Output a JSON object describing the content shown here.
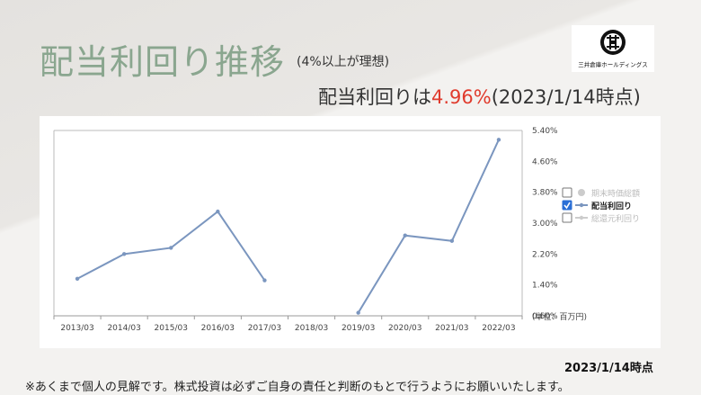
{
  "header": {
    "title": "配当利回り推移",
    "note": "(4%以上が理想)",
    "yield_prefix": "配当利回りは",
    "yield_value": "4.96%",
    "yield_suffix": "(2023/1/14時点)"
  },
  "logo": {
    "name": "三井倉庫ホールディングス",
    "icon": "company-logo-icon"
  },
  "footer": {
    "as_of": "2023/1/14時点",
    "disclaimer": "※あくまで個人の見解です。株式投資は必ずご自身の責任と判断のもとで行うようにお願いいたします。"
  },
  "chart_data": {
    "type": "line",
    "categories": [
      "2013/03",
      "2014/03",
      "2015/03",
      "2016/03",
      "2017/03",
      "2018/03",
      "2019/03",
      "2020/03",
      "2021/03",
      "2022/03"
    ],
    "series": [
      {
        "name": "配当利回り",
        "values": [
          1.56,
          2.2,
          2.36,
          3.3,
          1.52,
          null,
          0.68,
          2.68,
          2.54,
          5.16
        ],
        "color": "#7b96bf"
      }
    ],
    "y_ticks": [
      "5.40%",
      "4.60%",
      "3.80%",
      "3.00%",
      "2.20%",
      "1.40%",
      "0.60%"
    ],
    "ylim": [
      0.6,
      5.4
    ],
    "unit_label": "(単位：百万円)",
    "legend": [
      {
        "label": "期末時価総額",
        "checked": false,
        "color": "#cccccc"
      },
      {
        "label": "配当利回り",
        "checked": true,
        "color": "#7b96bf"
      },
      {
        "label": "総還元利回り",
        "checked": false,
        "color": "#cccccc"
      }
    ],
    "legend_position": "right",
    "grid": false
  }
}
